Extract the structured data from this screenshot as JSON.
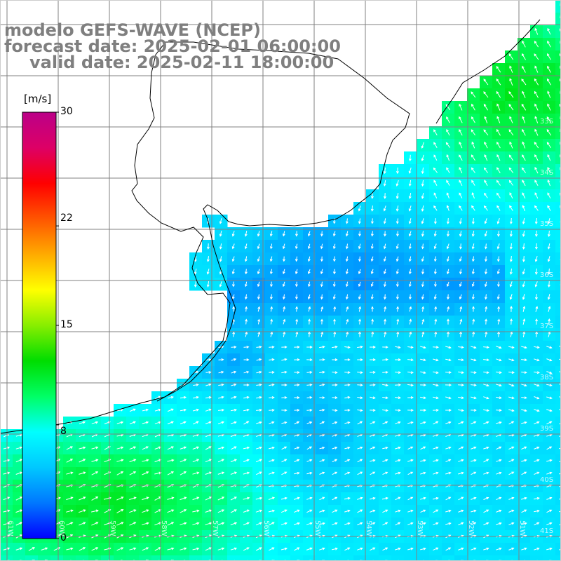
{
  "title": {
    "line1": "modelo GEFS-WAVE (NCEP)",
    "line2": "forecast date: 2025-02-01 06:00:00",
    "line3": "valid date: 2025-02-11 18:00:00"
  },
  "colorbar": {
    "unit": "[m/s]",
    "ticks": [
      "30",
      "22",
      "15",
      "8",
      "0"
    ],
    "tick_values": [
      30,
      22,
      15,
      8,
      0
    ],
    "range": [
      0,
      30
    ],
    "colors": [
      "#0000ff",
      "#0077ff",
      "#00c8ff",
      "#00ffff",
      "#00ff66",
      "#00dd00",
      "#88ee00",
      "#ffff00",
      "#ffaa00",
      "#ff5500",
      "#ff0000",
      "#dd0066",
      "#bb0088"
    ]
  },
  "map": {
    "variable": "wind speed and direction",
    "lat_labels": [
      "33S",
      "34S",
      "35S",
      "36S",
      "37S",
      "38S",
      "39S",
      "40S",
      "41S"
    ],
    "lon_labels": [
      "61W",
      "60W",
      "59W",
      "58W",
      "57W",
      "56W",
      "55W",
      "54W",
      "53W",
      "52W",
      "51W"
    ],
    "land_color": "#ffffff",
    "grid_color": "#808080",
    "coast_color": "#000000",
    "vector_color": "#ffffff"
  }
}
